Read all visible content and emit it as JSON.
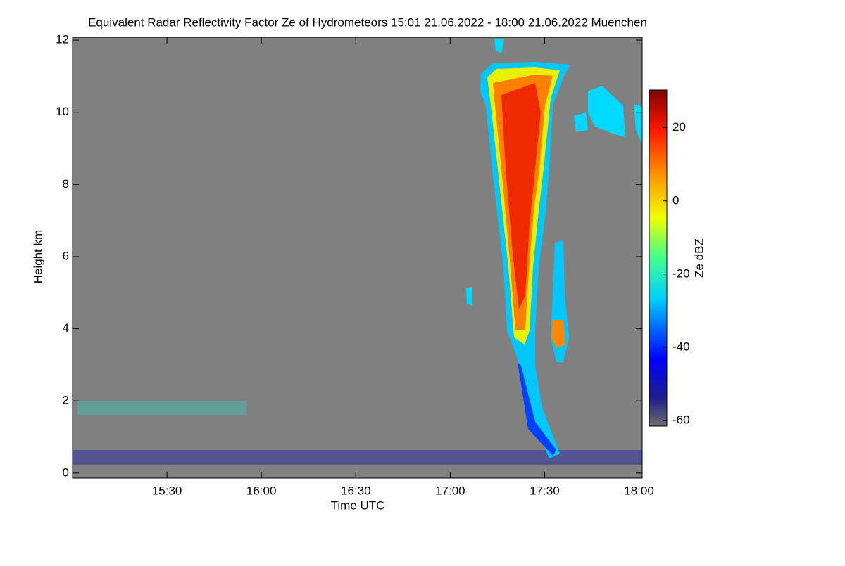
{
  "chart_data": {
    "type": "heatmap",
    "title": "Equivalent Radar Reflectivity Factor Ze of Hydrometeors   15:01 21.06.2022 - 18:00 21.06.2022 Muenchen",
    "x_label": "Time UTC",
    "y_label": "Height km",
    "colorbar_label": "Ze dBZ",
    "xlim": [
      900,
      1081
    ],
    "xticks": [
      {
        "value": 930,
        "label": "15:30"
      },
      {
        "value": 960,
        "label": "16:00"
      },
      {
        "value": 990,
        "label": "16:30"
      },
      {
        "value": 1020,
        "label": "17:00"
      },
      {
        "value": 1050,
        "label": "17:30"
      },
      {
        "value": 1080,
        "label": "18:00"
      }
    ],
    "ylim": [
      -0.14,
      12.08
    ],
    "yticks": [
      0,
      2,
      4,
      6,
      8,
      10,
      12
    ],
    "clim": [
      -61.5,
      30.3
    ],
    "cticks": [
      -60,
      -40,
      -20,
      0,
      20
    ],
    "background": "#808080"
  }
}
